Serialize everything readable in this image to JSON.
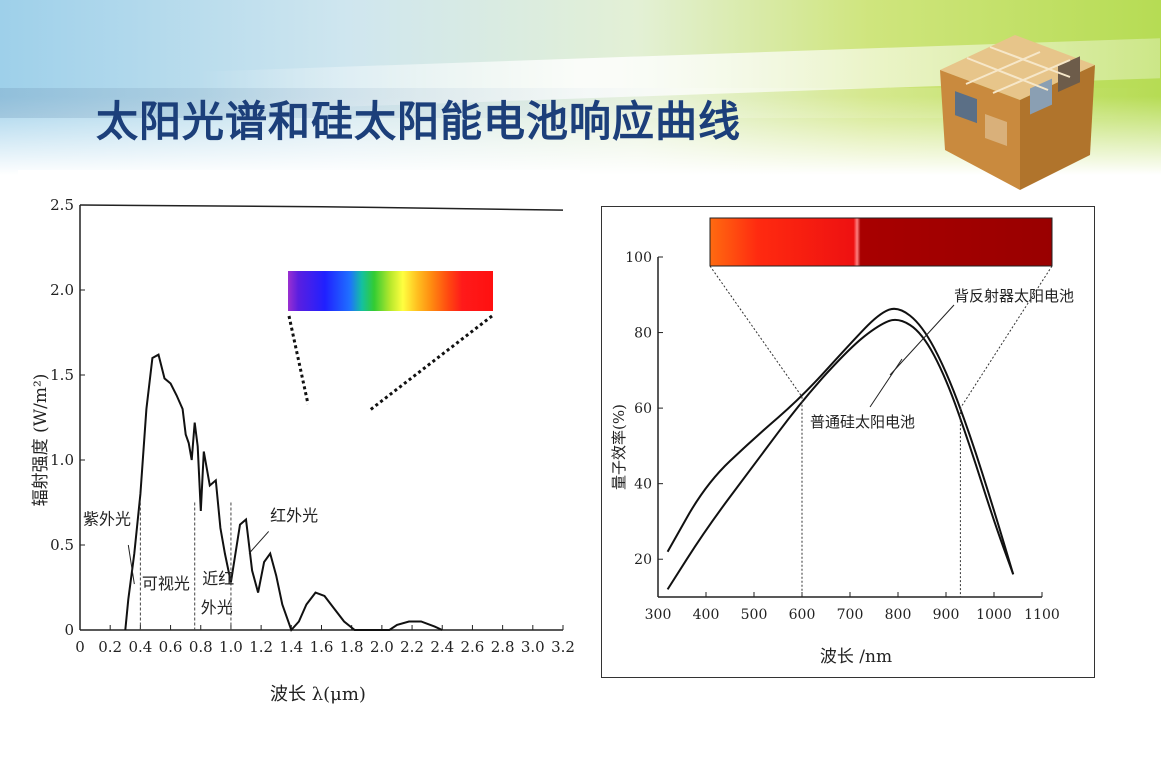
{
  "slide": {
    "title": "太阳光谱和硅太阳能电池响应曲线"
  },
  "chart_data": [
    {
      "type": "line",
      "xlabel": "波长 λ(μm)",
      "ylabel": "辐射强度 (W/m²)",
      "xlim": [
        0,
        3.2
      ],
      "ylim": [
        0,
        2.5
      ],
      "x_ticks": [
        "0",
        "0.2",
        "0.4",
        "0.6",
        "0.8",
        "1.0",
        "1.2",
        "1.4",
        "1.6",
        "1.8",
        "2.0",
        "2.2",
        "2.4",
        "2.6",
        "2.8",
        "3.0",
        "3.2"
      ],
      "y_ticks": [
        "0",
        "0.5",
        "1.0",
        "1.5",
        "2.0",
        "2.5"
      ],
      "series": [
        {
          "x": [
            0.3,
            0.32,
            0.36,
            0.4,
            0.44,
            0.48,
            0.52,
            0.56,
            0.6,
            0.64,
            0.68,
            0.7,
            0.72,
            0.74,
            0.76,
            0.78,
            0.8,
            0.82,
            0.86,
            0.9,
            0.93,
            0.96,
            1.0,
            1.06,
            1.1,
            1.14,
            1.18,
            1.22,
            1.26,
            1.3,
            1.34,
            1.4,
            1.45,
            1.5,
            1.56,
            1.62,
            1.68,
            1.75,
            1.82,
            1.85,
            1.95,
            2.05,
            2.1,
            2.18,
            2.26,
            2.35,
            2.4
          ],
          "y": [
            0.0,
            0.18,
            0.45,
            0.8,
            1.3,
            1.6,
            1.62,
            1.48,
            1.45,
            1.38,
            1.3,
            1.15,
            1.1,
            1.0,
            1.22,
            1.08,
            0.7,
            1.05,
            0.85,
            0.88,
            0.6,
            0.45,
            0.28,
            0.62,
            0.65,
            0.35,
            0.22,
            0.4,
            0.45,
            0.32,
            0.15,
            0.0,
            0.05,
            0.15,
            0.22,
            0.2,
            0.13,
            0.05,
            0.0,
            0.0,
            0.0,
            0.0,
            0.03,
            0.05,
            0.05,
            0.02,
            0.0
          ]
        }
      ],
      "annotations": [
        "紫外光",
        "可视光",
        "近红",
        "外光",
        "红外光"
      ]
    },
    {
      "type": "line",
      "xlabel": "波长 /nm",
      "ylabel": "量子效率(%)",
      "xlim": [
        300,
        1100
      ],
      "ylim": [
        0,
        100
      ],
      "x_ticks": [
        "300",
        "400",
        "500",
        "600",
        "700",
        "800",
        "900",
        "1000",
        "1100"
      ],
      "y_ticks": [
        "20",
        "40",
        "60",
        "80",
        "100"
      ],
      "series": [
        {
          "name": "背反射器太阳电池",
          "x": [
            320,
            400,
            500,
            600,
            700,
            760,
            800,
            850,
            900,
            950,
            1000,
            1040
          ],
          "y": [
            22,
            40,
            52,
            63,
            77,
            85,
            87,
            82,
            70,
            53,
            33,
            16
          ]
        },
        {
          "name": "普通硅太阳电池",
          "x": [
            320,
            400,
            500,
            600,
            700,
            760,
            800,
            850,
            900,
            950,
            1000,
            1040
          ],
          "y": [
            12,
            28,
            45,
            62,
            76,
            82,
            84,
            80,
            68,
            50,
            30,
            16
          ]
        }
      ]
    }
  ]
}
